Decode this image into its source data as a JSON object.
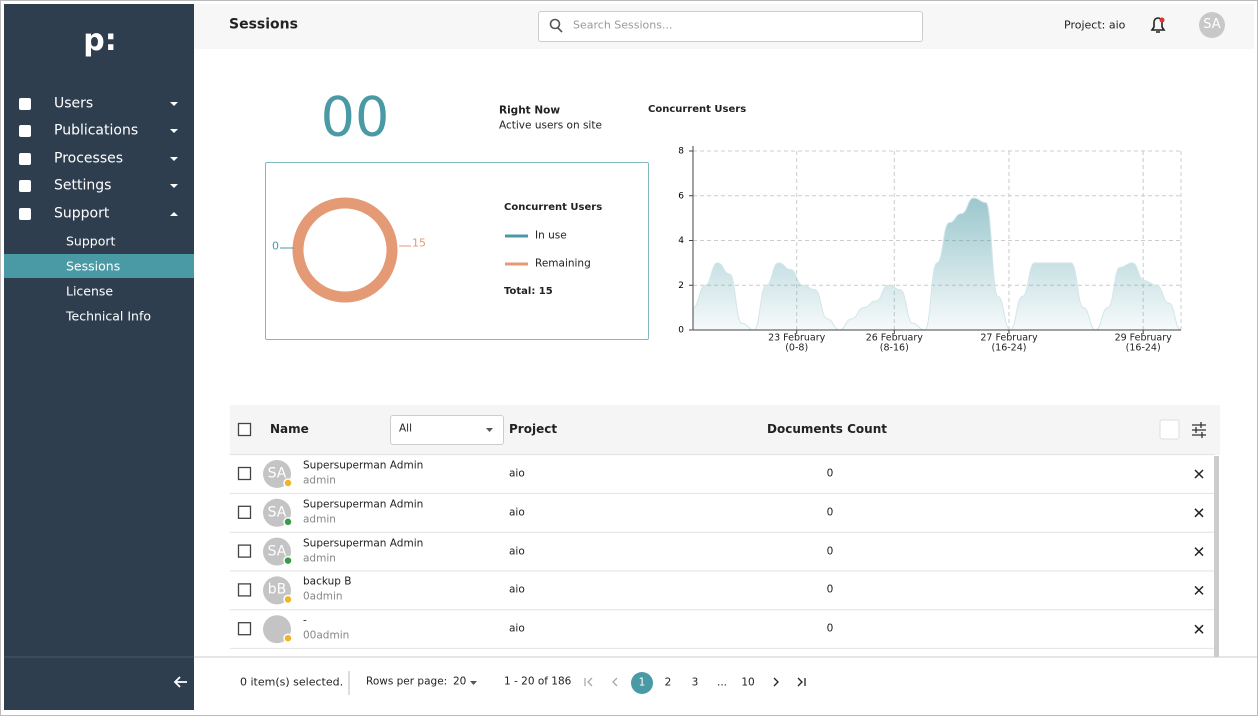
{
  "sidebar": {
    "logo": "p:",
    "nav": [
      {
        "label": "Users",
        "expanded": false
      },
      {
        "label": "Publications",
        "expanded": false
      },
      {
        "label": "Processes",
        "expanded": false
      },
      {
        "label": "Settings",
        "expanded": false
      },
      {
        "label": "Support",
        "expanded": true
      }
    ],
    "subnav": [
      "Support",
      "Sessions",
      "License",
      "Technical Info"
    ],
    "active_subnav": 1
  },
  "header": {
    "title": "Sessions",
    "search_placeholder": "Search Sessions...",
    "project": "Project: aio",
    "avatar": "SA"
  },
  "summary": {
    "count": "00",
    "heading": "Right Now",
    "caption": "Active users on site"
  },
  "chart_data": [
    {
      "type": "donut",
      "legend_title": "Concurrent Users",
      "categories": [
        "In use",
        "Remaining"
      ],
      "values": [
        0,
        15
      ],
      "colors": [
        "#4a9aa5",
        "#e39a75"
      ],
      "total_label": "Total: 15"
    },
    {
      "type": "area",
      "title": "Concurrent Users",
      "color": "#4a9aa5",
      "x": [
        0,
        1,
        2,
        3,
        4,
        5,
        6,
        7,
        8,
        9,
        10,
        11,
        12,
        13,
        14,
        15,
        16,
        17,
        18,
        19,
        20,
        21,
        22,
        23,
        24,
        25,
        26,
        27,
        28,
        29,
        30,
        31,
        32,
        33,
        34,
        35,
        36,
        37,
        38,
        39,
        40
      ],
      "values": [
        1,
        2,
        3,
        2.5,
        0.3,
        0,
        2,
        3,
        2.7,
        2,
        1.8,
        0.5,
        0,
        0.5,
        1,
        1.3,
        2,
        1.8,
        0.3,
        0,
        3,
        4.8,
        5.2,
        5.9,
        5.7,
        1.5,
        0,
        1.5,
        3,
        3,
        3,
        3,
        1,
        0,
        1,
        2.8,
        3,
        2.2,
        2,
        1.2,
        0
      ],
      "xlim": [
        0,
        40
      ],
      "ylim": [
        0,
        8
      ],
      "yticks": [
        0,
        2,
        4,
        6,
        8
      ],
      "xticks": [
        {
          "value": 8.5,
          "label": "23 February\n(0-8)"
        },
        {
          "value": 16.5,
          "label": "26 February\n(8-16)"
        },
        {
          "value": 25.9,
          "label": "27 February\n(16-24)"
        },
        {
          "value": 36.9,
          "label": "29 February\n(16-24)"
        }
      ],
      "grid": true
    }
  ],
  "table": {
    "columns": [
      "Name",
      "Project",
      "Documents Count"
    ],
    "filter": "All",
    "rows": [
      {
        "initials": "SA",
        "name": "Supersuperman Admin",
        "user": "admin",
        "project": "aio",
        "documents": "0",
        "status": "#f0b429"
      },
      {
        "initials": "SA",
        "name": "Supersuperman Admin",
        "user": "admin",
        "project": "aio",
        "documents": "0",
        "status": "#3a9a4a"
      },
      {
        "initials": "SA",
        "name": "Supersuperman Admin",
        "user": "admin",
        "project": "aio",
        "documents": "0",
        "status": "#3a9a4a"
      },
      {
        "initials": "bB",
        "name": "backup B",
        "user": "0admin",
        "project": "aio",
        "documents": "0",
        "status": "#f0b429"
      },
      {
        "initials": "",
        "name": "-",
        "user": "00admin",
        "project": "aio",
        "documents": "0",
        "status": "#f0b429"
      }
    ]
  },
  "footer": {
    "selected": "0 item(s) selected.",
    "rows_per_page_label": "Rows per page:",
    "rows_per_page": 20,
    "range": "1 - 20 of 186",
    "pages": [
      "1",
      "2",
      "3",
      "...",
      "10"
    ],
    "current_page": 0
  }
}
